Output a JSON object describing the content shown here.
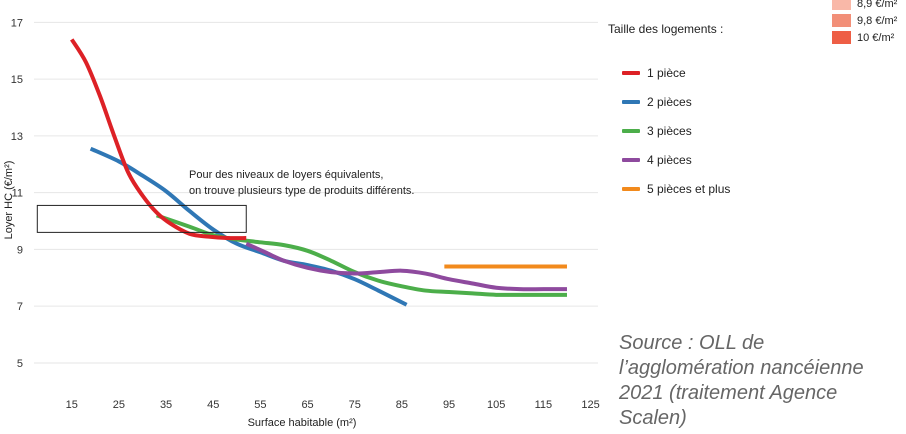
{
  "chart_data": {
    "type": "line",
    "xlabel": "Surface habitable (m²)",
    "ylabel": "Loyer HC (€/m²)",
    "xlim": [
      7,
      127
    ],
    "ylim": [
      3.8,
      17.4
    ],
    "x_ticks": [
      15,
      25,
      35,
      45,
      55,
      65,
      75,
      85,
      95,
      105,
      115,
      125
    ],
    "y_ticks": [
      5,
      7,
      9,
      11,
      13,
      15,
      17
    ],
    "grid": "horizontal",
    "series": [
      {
        "name": "1 pièce",
        "color": "#dd2126",
        "points": [
          [
            15,
            16.4
          ],
          [
            18,
            15.6
          ],
          [
            21,
            14.4
          ],
          [
            24,
            13.0
          ],
          [
            27,
            11.7
          ],
          [
            30,
            10.9
          ],
          [
            33,
            10.3
          ],
          [
            36,
            9.9
          ],
          [
            40,
            9.55
          ],
          [
            44,
            9.45
          ],
          [
            48,
            9.4
          ],
          [
            52,
            9.4
          ]
        ]
      },
      {
        "name": "2 pièces",
        "color": "#2f77b5",
        "points": [
          [
            19,
            12.55
          ],
          [
            25,
            12.1
          ],
          [
            30,
            11.6
          ],
          [
            35,
            11.05
          ],
          [
            40,
            10.35
          ],
          [
            45,
            9.7
          ],
          [
            50,
            9.2
          ],
          [
            55,
            8.9
          ],
          [
            60,
            8.6
          ],
          [
            65,
            8.45
          ],
          [
            70,
            8.25
          ],
          [
            75,
            7.95
          ],
          [
            80,
            7.55
          ],
          [
            86,
            7.05
          ]
        ]
      },
      {
        "name": "3 pièces",
        "color": "#4cae4a",
        "points": [
          [
            33,
            10.2
          ],
          [
            40,
            9.8
          ],
          [
            45,
            9.5
          ],
          [
            50,
            9.35
          ],
          [
            55,
            9.25
          ],
          [
            60,
            9.15
          ],
          [
            65,
            8.95
          ],
          [
            70,
            8.6
          ],
          [
            75,
            8.2
          ],
          [
            80,
            7.9
          ],
          [
            85,
            7.7
          ],
          [
            90,
            7.55
          ],
          [
            95,
            7.5
          ],
          [
            100,
            7.45
          ],
          [
            105,
            7.4
          ],
          [
            110,
            7.4
          ],
          [
            115,
            7.4
          ],
          [
            120,
            7.4
          ]
        ]
      },
      {
        "name": "4 pièces",
        "color": "#8e4a9e",
        "points": [
          [
            52,
            9.2
          ],
          [
            56,
            8.9
          ],
          [
            60,
            8.6
          ],
          [
            65,
            8.35
          ],
          [
            70,
            8.2
          ],
          [
            75,
            8.15
          ],
          [
            80,
            8.2
          ],
          [
            85,
            8.25
          ],
          [
            90,
            8.15
          ],
          [
            95,
            7.95
          ],
          [
            100,
            7.8
          ],
          [
            105,
            7.65
          ],
          [
            110,
            7.6
          ],
          [
            115,
            7.6
          ],
          [
            120,
            7.6
          ]
        ]
      },
      {
        "name": "5 pièces et plus",
        "color": "#f28a1c",
        "points": [
          [
            94,
            8.4
          ],
          [
            120,
            8.4
          ]
        ]
      }
    ],
    "annotation": {
      "lines": [
        "Pour des niveaux de loyers équivalents,",
        "on trouve plusieurs type de produits différents."
      ],
      "box_x": [
        7.7,
        52
      ],
      "box_y": [
        9.6,
        10.55
      ]
    }
  },
  "legend": {
    "title": "Taille des logements :"
  },
  "scale_legend": [
    {
      "label": "8,9 €/m²",
      "color": "#f9b8a8"
    },
    {
      "label": "9,8 €/m²",
      "color": "#f28f78"
    },
    {
      "label": "10 €/m²",
      "color": "#ee5e45"
    }
  ],
  "source": "Source : OLL de l’agglomération nancéienne 2021 (traitement Agence Scalen)"
}
